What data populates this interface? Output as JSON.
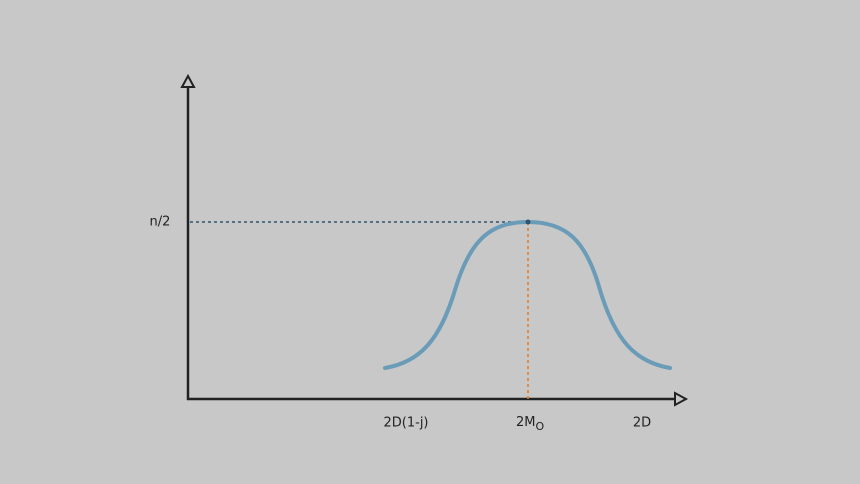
{
  "y_axis": {
    "label": "n/2"
  },
  "x_axis": {
    "labels": [
      "2D(1-j)",
      {
        "main": "2M",
        "sub": "O"
      },
      "2D"
    ]
  }
}
